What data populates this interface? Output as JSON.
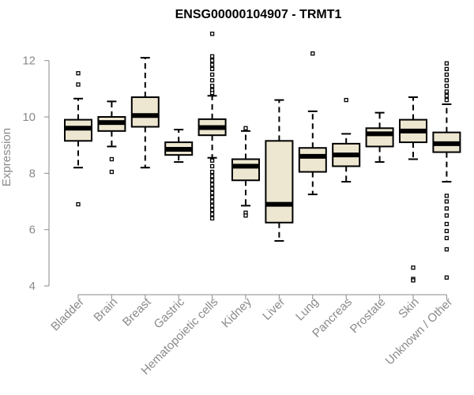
{
  "chart_data": {
    "type": "boxplot",
    "title": "ENSG00000104907 - TRMT1",
    "xlabel": "",
    "ylabel": "Expression",
    "ylim": [
      4,
      13
    ],
    "yticks": [
      4,
      6,
      8,
      10,
      12
    ],
    "box_fill": "#ede7d1",
    "median_color": "#000000",
    "categories": [
      "Bladder",
      "Brain",
      "Breast",
      "Gastric",
      "Hematopoietic cells",
      "Kidney",
      "Liver",
      "Lung",
      "Pancreas",
      "Prostate",
      "Skin",
      "Unknown / Other"
    ],
    "boxes": [
      {
        "label": "Bladder",
        "whislo": 8.2,
        "q1": 9.15,
        "med": 9.6,
        "q3": 9.9,
        "whishi": 10.65,
        "fliers": [
          11.55,
          11.15,
          6.9
        ]
      },
      {
        "label": "Brain",
        "whislo": 8.95,
        "q1": 9.5,
        "med": 9.8,
        "q3": 10.0,
        "whishi": 10.55,
        "fliers": [
          8.5,
          8.05
        ]
      },
      {
        "label": "Breast",
        "whislo": 8.2,
        "q1": 9.65,
        "med": 10.05,
        "q3": 10.7,
        "whishi": 12.1,
        "fliers": []
      },
      {
        "label": "Gastric",
        "whislo": 8.4,
        "q1": 8.65,
        "med": 8.85,
        "q3": 9.1,
        "whishi": 9.55,
        "fliers": []
      },
      {
        "label": "Hematopoietic cells",
        "whislo": 8.55,
        "q1": 9.35,
        "med": 9.62,
        "q3": 9.92,
        "whishi": 10.75,
        "fliers": [
          12.95,
          12.15,
          12.0,
          11.85,
          11.7,
          11.5,
          11.3,
          11.1,
          10.95,
          10.85,
          8.45,
          8.25,
          8.05,
          7.9,
          7.75,
          7.6,
          7.45,
          7.3,
          7.15,
          7.0,
          6.85,
          6.7,
          6.55,
          6.4
        ]
      },
      {
        "label": "Kidney",
        "whislo": 6.85,
        "q1": 7.75,
        "med": 8.25,
        "q3": 8.5,
        "whishi": 9.5,
        "fliers": [
          9.6,
          6.6,
          6.5
        ]
      },
      {
        "label": "Liver",
        "whislo": 5.6,
        "q1": 6.25,
        "med": 6.9,
        "q3": 9.15,
        "whishi": 10.6,
        "fliers": []
      },
      {
        "label": "Lung",
        "whislo": 7.25,
        "q1": 8.05,
        "med": 8.6,
        "q3": 8.9,
        "whishi": 10.2,
        "fliers": [
          12.25
        ]
      },
      {
        "label": "Pancreas",
        "whislo": 7.7,
        "q1": 8.25,
        "med": 8.65,
        "q3": 9.05,
        "whishi": 9.4,
        "fliers": [
          10.6
        ]
      },
      {
        "label": "Prostate",
        "whislo": 8.4,
        "q1": 8.95,
        "med": 9.4,
        "q3": 9.6,
        "whishi": 10.15,
        "fliers": []
      },
      {
        "label": "Skin",
        "whislo": 8.5,
        "q1": 9.1,
        "med": 9.5,
        "q3": 9.9,
        "whishi": 10.7,
        "fliers": [
          4.65,
          4.25,
          4.2
        ]
      },
      {
        "label": "Unknown / Other",
        "whislo": 7.7,
        "q1": 8.75,
        "med": 9.05,
        "q3": 9.45,
        "whishi": 10.45,
        "fliers": [
          11.9,
          11.7,
          11.5,
          11.3,
          11.1,
          10.9,
          10.75,
          10.6,
          7.2,
          7.0,
          6.75,
          6.5,
          6.2,
          5.95,
          5.7,
          5.3,
          4.3
        ]
      }
    ]
  }
}
